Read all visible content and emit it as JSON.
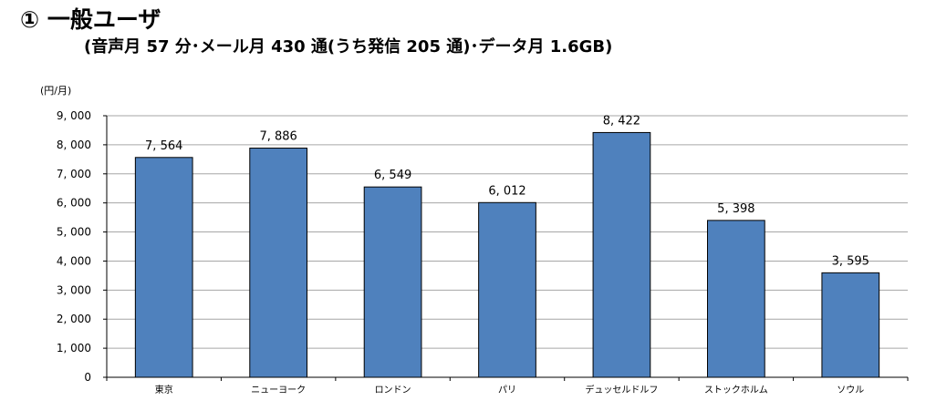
{
  "heading": {
    "title": "① 一般ユーザ",
    "subtitle": "(音声月 57 分･メール月 430 通(うち発信 205 通)･データ月 1.6GB)"
  },
  "chart_data": {
    "type": "bar",
    "unit_label": "(円/月)",
    "categories": [
      "東京",
      "ニューヨーク",
      "ロンドン",
      "パリ",
      "デュッセルドルフ",
      "ストックホルム",
      "ソウル"
    ],
    "values": [
      7564,
      7886,
      6549,
      6012,
      8422,
      5398,
      3595
    ],
    "value_labels": [
      "7, 564",
      "7, 886",
      "6, 549",
      "6, 012",
      "8, 422",
      "5, 398",
      "3, 595"
    ],
    "y_ticks": [
      0,
      1000,
      2000,
      3000,
      4000,
      5000,
      6000,
      7000,
      8000,
      9000
    ],
    "y_tick_labels": [
      "0",
      "1, 000",
      "2, 000",
      "3, 000",
      "4, 000",
      "5, 000",
      "6, 000",
      "7, 000",
      "8, 000",
      "9, 000"
    ],
    "ylim": [
      0,
      9000
    ],
    "grid": true,
    "legend": "none",
    "bar_color": "#4f81bd",
    "bar_edge_color": "#000000"
  }
}
